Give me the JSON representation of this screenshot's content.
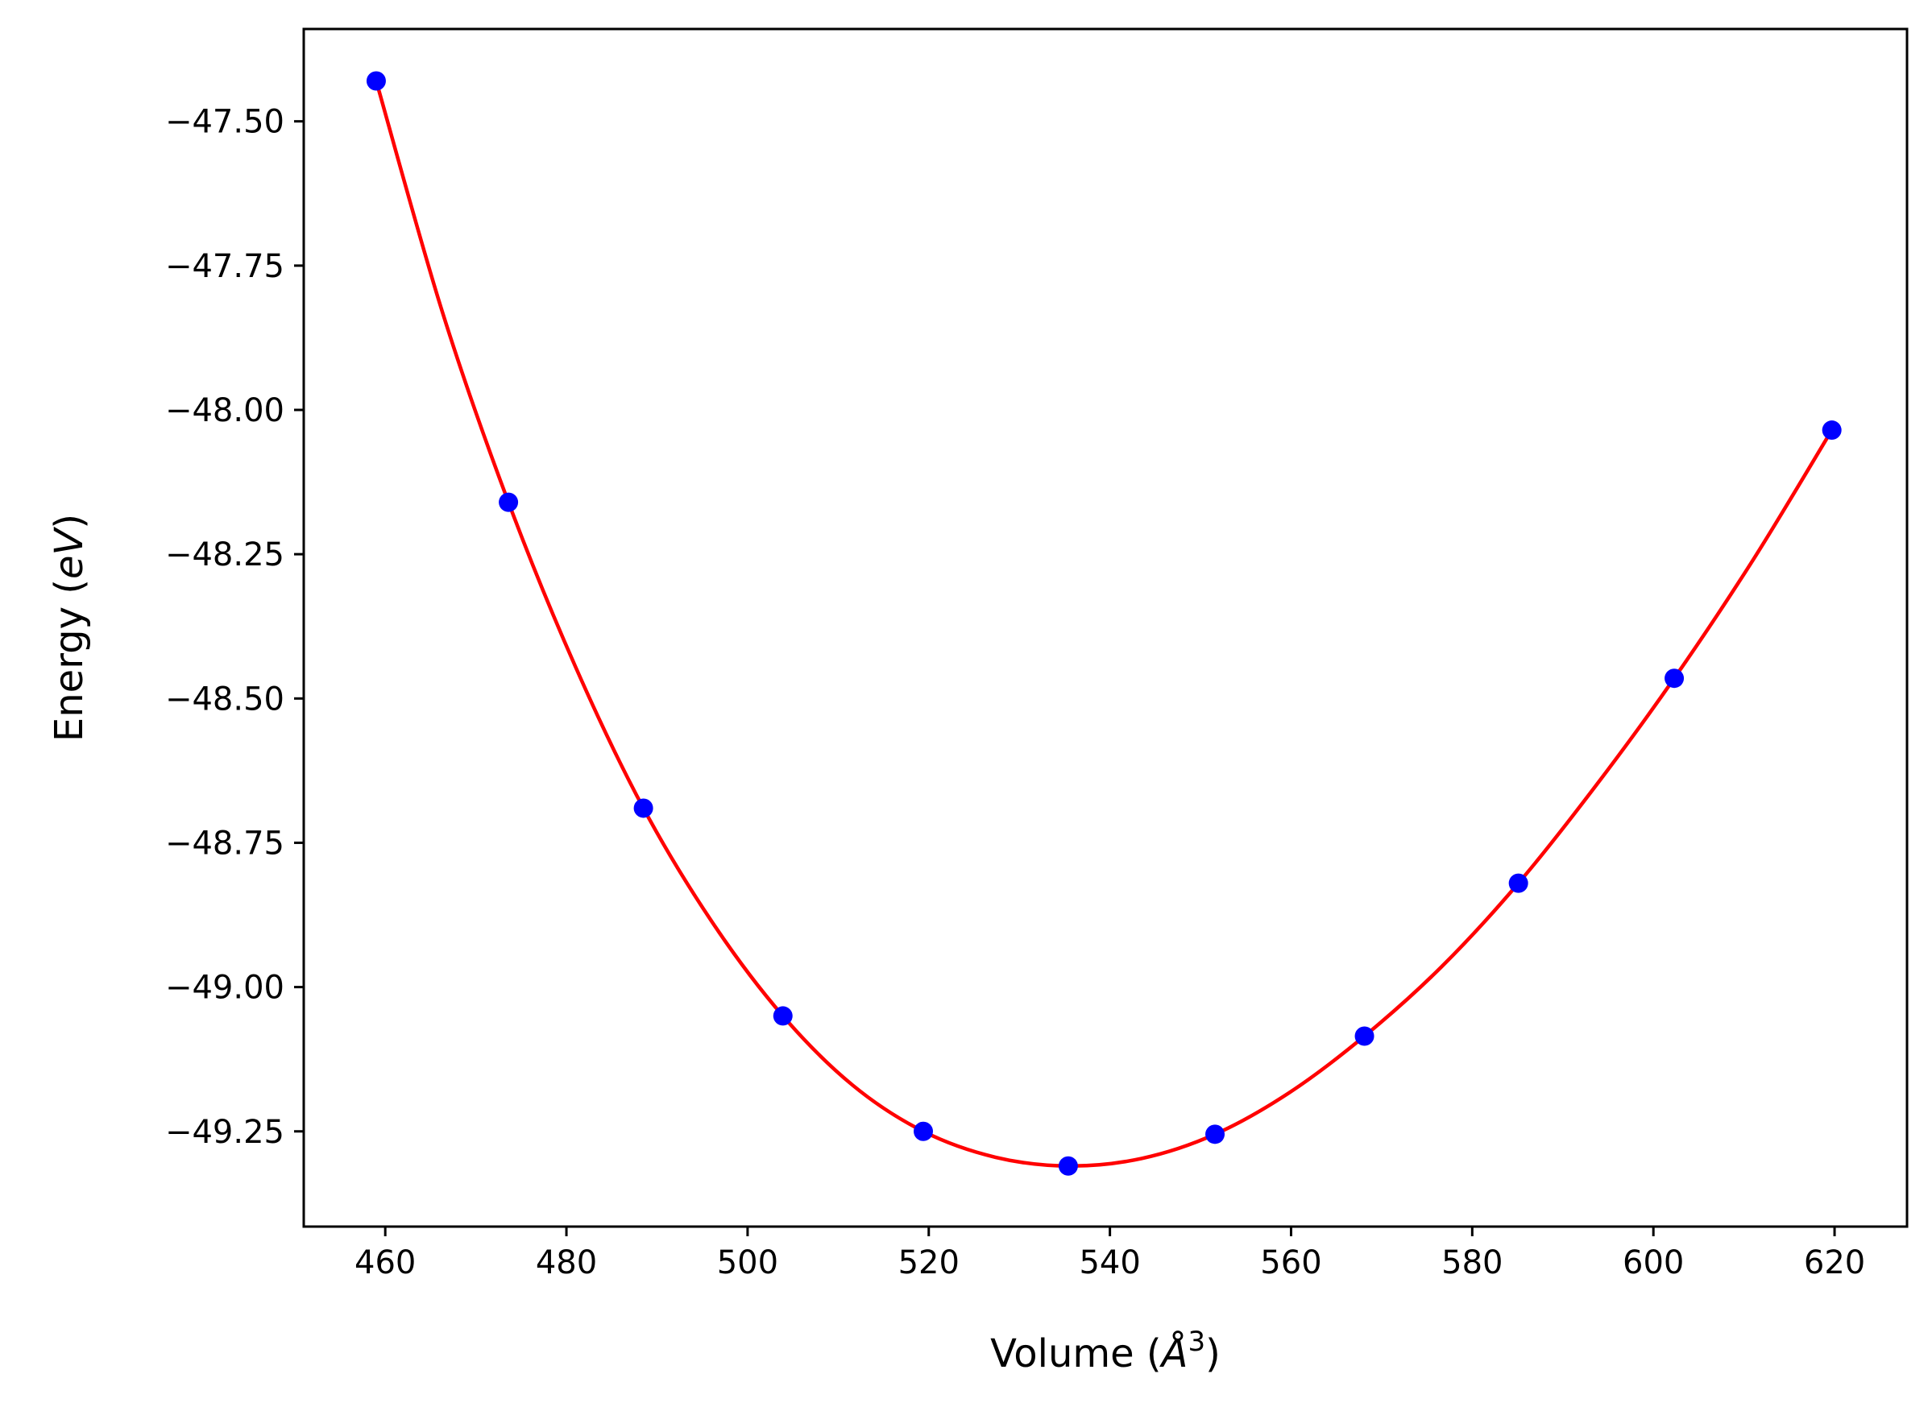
{
  "chart_data": {
    "type": "scatter",
    "title": "",
    "xlabel_parts": {
      "before": "Volume (",
      "symbol": "Å",
      "power": "3",
      "after": ")"
    },
    "ylabel_parts": {
      "before": "Energy (",
      "symbol": "eV",
      "after": ")"
    },
    "xlim": [
      451,
      628
    ],
    "ylim": [
      -49.415,
      -47.34
    ],
    "xticks": [
      460,
      480,
      500,
      520,
      540,
      560,
      580,
      600,
      620
    ],
    "xtick_labels": [
      "460",
      "480",
      "500",
      "520",
      "540",
      "560",
      "580",
      "600",
      "620"
    ],
    "yticks": [
      -47.5,
      -47.75,
      -48.0,
      -48.25,
      -48.5,
      -48.75,
      -49.0,
      -49.25
    ],
    "ytick_labels": [
      "−47.50",
      "−47.75",
      "−48.00",
      "−48.25",
      "−48.50",
      "−48.75",
      "−49.00",
      "−49.25"
    ],
    "grid": false,
    "series": [
      {
        "kind": "points",
        "color": "#0000ff",
        "x": [
          459.0,
          473.6,
          488.5,
          503.9,
          519.4,
          535.4,
          551.6,
          568.1,
          585.1,
          602.3,
          619.7
        ],
        "y": [
          -47.43,
          -48.16,
          -48.69,
          -49.05,
          -49.25,
          -49.31,
          -49.255,
          -49.085,
          -48.82,
          -48.465,
          -48.035
        ]
      },
      {
        "kind": "fit-curve",
        "color": "#ff0000",
        "x": [
          459.0,
          466.3,
          473.6,
          481.0,
          488.5,
          496.2,
          503.9,
          511.6,
          519.4,
          527.4,
          535.4,
          543.5,
          551.6,
          559.8,
          568.1,
          576.6,
          585.1,
          593.7,
          602.3,
          611.0,
          619.7
        ],
        "y": [
          -47.43,
          -47.83,
          -48.16,
          -48.445,
          -48.69,
          -48.89,
          -49.05,
          -49.17,
          -49.25,
          -49.295,
          -49.31,
          -49.297,
          -49.255,
          -49.183,
          -49.085,
          -48.965,
          -48.82,
          -48.65,
          -48.465,
          -48.26,
          -48.035
        ]
      }
    ]
  }
}
